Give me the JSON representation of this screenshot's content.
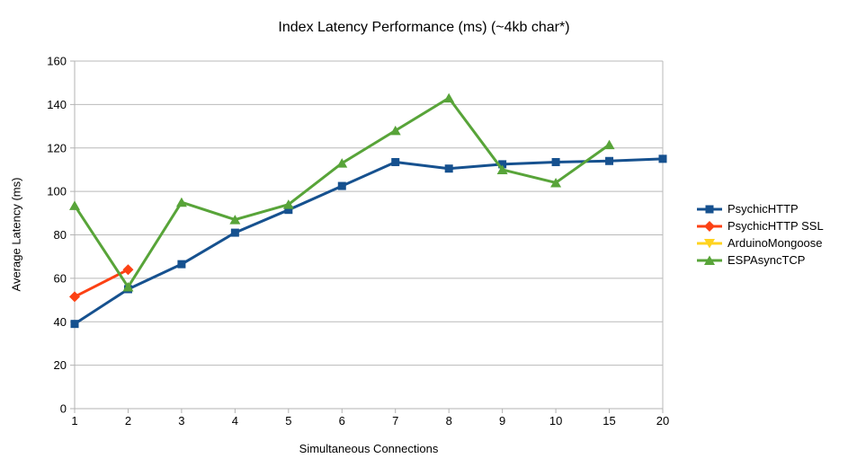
{
  "chart_data": {
    "type": "line",
    "title": "Index Latency Performance (ms) (~4kb char*)",
    "xlabel": "Simultaneous Connections",
    "ylabel": "Average Latency (ms)",
    "ylim": [
      0,
      160
    ],
    "ytick_step": 20,
    "yticks": [
      0,
      20,
      40,
      60,
      80,
      100,
      120,
      140,
      160
    ],
    "categories": [
      "1",
      "2",
      "3",
      "4",
      "5",
      "6",
      "7",
      "8",
      "9",
      "10",
      "15",
      "20"
    ],
    "grid": "horizontal",
    "legend_position": "right",
    "gridline_color": "#b9b9b9",
    "axis_color": "#b3b3b3",
    "series": [
      {
        "name": "PsychicHTTP",
        "color": "#16518F",
        "marker": "square",
        "values": [
          39,
          55,
          66.5,
          81,
          91.5,
          102.5,
          113.5,
          110.5,
          112.5,
          113.5,
          114,
          115
        ]
      },
      {
        "name": "PsychicHTTP SSL",
        "color": "#FC4114",
        "marker": "diamond",
        "values": [
          51.5,
          64,
          null,
          null,
          null,
          null,
          null,
          null,
          null,
          null,
          null,
          null
        ]
      },
      {
        "name": "ArduinoMongoose",
        "color": "#FFD320",
        "marker": "triangle-down",
        "values": [
          null,
          null,
          null,
          null,
          null,
          null,
          null,
          null,
          null,
          null,
          null,
          null
        ]
      },
      {
        "name": "ESPAsyncTCP",
        "color": "#58A439",
        "marker": "triangle-up",
        "values": [
          93.5,
          56,
          95,
          87,
          94,
          113,
          128,
          143,
          110,
          104,
          121.5,
          null
        ]
      }
    ]
  }
}
